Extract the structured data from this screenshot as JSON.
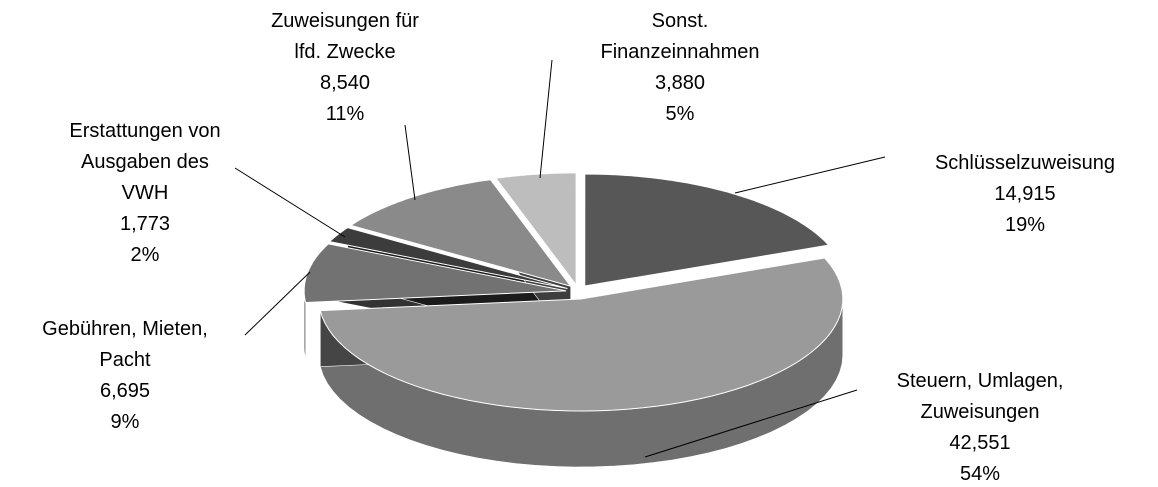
{
  "chart_data": {
    "type": "pie3d",
    "categories": [
      "Schlüsselzuweisung",
      "Steuern, Umlagen,\nZuweisungen",
      "Gebühren, Mieten,\nPacht",
      "Erstattungen von\nAusgaben des\nVWH",
      "Zuweisungen für\nlfd. Zwecke",
      "Sonst.\nFinanzeinnahmen"
    ],
    "values": [
      14915,
      42551,
      6695,
      1773,
      8540,
      3880
    ],
    "value_labels": [
      "14,915",
      "42,551",
      "6,695",
      "1,773",
      "8,540",
      "3,880"
    ],
    "percent_labels": [
      "19%",
      "54%",
      "9%",
      "2%",
      "11%",
      "5%"
    ],
    "colors": [
      "#575757",
      "#9a9a9a",
      "#727272",
      "#3c3c3c",
      "#8a8a8a",
      "#bdbdbd"
    ]
  }
}
